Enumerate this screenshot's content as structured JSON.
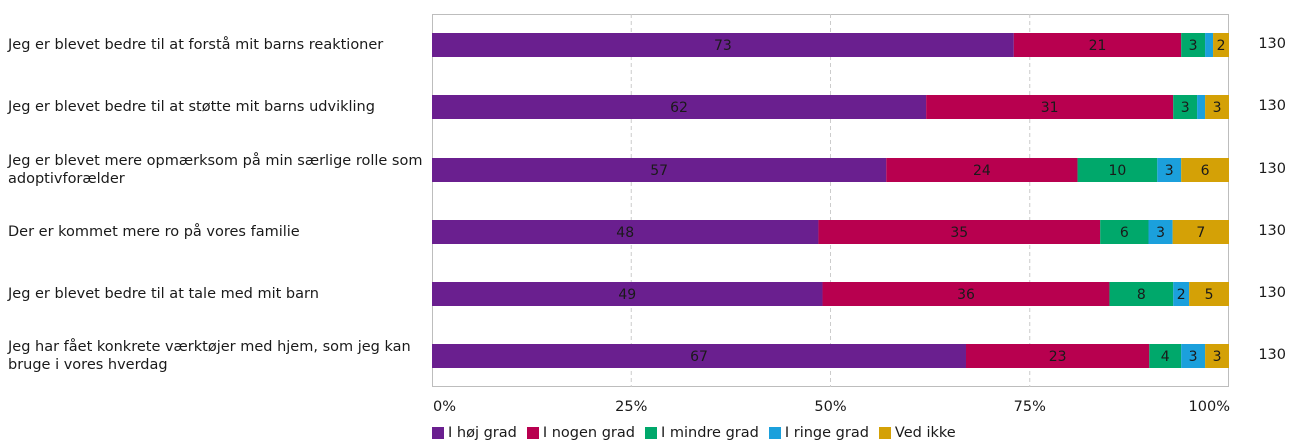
{
  "chart_data": {
    "type": "bar",
    "orientation": "horizontal",
    "stacked": "percent",
    "categories": [
      "Jeg er blevet bedre til at forstå mit barns reaktioner",
      "Jeg er blevet bedre til at støtte mit barns udvikling",
      "Jeg er blevet mere opmærksom på min særlige rolle som adoptivforælder",
      "Der er kommet mere ro på vores familie",
      "Jeg er blevet bedre til at tale med mit barn",
      "Jeg har fået konkrete værktøjer med hjem, som jeg kan bruge i vores hverdag"
    ],
    "n": [
      "130",
      "130",
      "130",
      "130",
      "130",
      "130"
    ],
    "series": [
      {
        "name": "I høj grad",
        "color": "#6a1f8f",
        "values": [
          73,
          62,
          57,
          48,
          49,
          67
        ]
      },
      {
        "name": "I nogen grad",
        "color": "#b8004f",
        "values": [
          21,
          31,
          24,
          35,
          36,
          23
        ]
      },
      {
        "name": "I mindre grad",
        "color": "#00a86b",
        "values": [
          3,
          3,
          10,
          6,
          8,
          4
        ]
      },
      {
        "name": "I ringe grad",
        "color": "#1ba0dc",
        "values": [
          1,
          1,
          3,
          3,
          2,
          3
        ]
      },
      {
        "name": "Ved ikke",
        "color": "#d4a106",
        "values": [
          2,
          3,
          6,
          7,
          5,
          3
        ]
      }
    ],
    "value_labels": [
      [
        "73",
        "21",
        "3",
        "",
        "2"
      ],
      [
        "62",
        "31",
        "3",
        "",
        "3"
      ],
      [
        "57",
        "24",
        "10",
        "3",
        "6"
      ],
      [
        "48",
        "35",
        "6",
        "3",
        "7"
      ],
      [
        "49",
        "36",
        "8",
        "2",
        "5"
      ],
      [
        "67",
        "23",
        "4",
        "3",
        "3"
      ]
    ],
    "x_ticks": [
      "0%",
      "25%",
      "50%",
      "75%",
      "100%"
    ],
    "xlim": [
      0,
      100
    ],
    "grid": true,
    "legend_position": "bottom"
  }
}
